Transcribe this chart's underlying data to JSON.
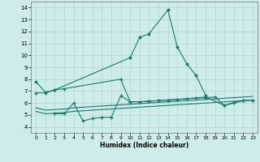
{
  "xlabel": "Humidex (Indice chaleur)",
  "xlim": [
    -0.5,
    23.5
  ],
  "ylim": [
    3.5,
    14.5
  ],
  "yticks": [
    4,
    5,
    6,
    7,
    8,
    9,
    10,
    11,
    12,
    13,
    14
  ],
  "xticks": [
    0,
    1,
    2,
    3,
    4,
    5,
    6,
    7,
    8,
    9,
    10,
    11,
    12,
    13,
    14,
    15,
    16,
    17,
    18,
    19,
    20,
    21,
    22,
    23
  ],
  "bg_color": "#ceecea",
  "grid_color": "#b8d8d4",
  "line_color": "#1a7a6e",
  "series1_x": [
    0,
    1,
    2,
    10,
    11,
    12,
    14,
    15,
    16,
    17,
    18
  ],
  "series1_y": [
    7.8,
    6.9,
    7.1,
    9.8,
    11.5,
    11.8,
    13.8,
    10.7,
    9.3,
    8.3,
    6.65
  ],
  "series2_x": [
    0,
    1,
    2,
    3,
    9,
    10,
    11,
    12,
    13,
    14,
    15,
    18,
    20,
    21,
    22,
    23
  ],
  "series2_y": [
    6.85,
    6.85,
    7.1,
    7.2,
    8.0,
    6.1,
    6.1,
    6.15,
    6.2,
    6.25,
    6.3,
    6.5,
    5.8,
    6.0,
    6.2,
    6.25
  ],
  "series3_x": [
    2,
    3,
    4,
    5,
    6,
    7,
    8,
    9,
    10,
    11,
    12,
    13,
    14,
    15,
    16,
    17,
    18,
    19,
    20,
    21,
    22,
    23
  ],
  "series3_y": [
    5.1,
    5.1,
    6.0,
    4.5,
    4.7,
    4.8,
    4.8,
    6.6,
    6.1,
    6.1,
    6.15,
    6.2,
    6.25,
    6.3,
    6.35,
    6.4,
    6.45,
    6.5,
    5.8,
    6.05,
    6.2,
    6.25
  ],
  "series4_x": [
    0,
    1,
    2,
    3,
    4,
    5,
    6,
    7,
    8,
    9,
    10,
    11,
    12,
    13,
    14,
    15,
    16,
    17,
    18,
    19,
    20,
    21,
    22,
    23
  ],
  "series4_y": [
    5.3,
    5.1,
    5.15,
    5.2,
    5.3,
    5.35,
    5.4,
    5.45,
    5.5,
    5.55,
    5.6,
    5.65,
    5.7,
    5.75,
    5.8,
    5.85,
    5.9,
    5.95,
    6.0,
    6.05,
    6.1,
    6.15,
    6.2,
    6.25
  ],
  "series5_x": [
    0,
    1,
    2,
    3,
    4,
    5,
    6,
    7,
    8,
    9,
    10,
    11,
    12,
    13,
    14,
    15,
    16,
    17,
    18,
    19,
    20,
    21,
    22,
    23
  ],
  "series5_y": [
    5.6,
    5.4,
    5.45,
    5.5,
    5.6,
    5.65,
    5.7,
    5.75,
    5.8,
    5.85,
    5.9,
    5.95,
    6.0,
    6.05,
    6.1,
    6.15,
    6.2,
    6.25,
    6.3,
    6.35,
    6.4,
    6.45,
    6.5,
    6.55
  ]
}
